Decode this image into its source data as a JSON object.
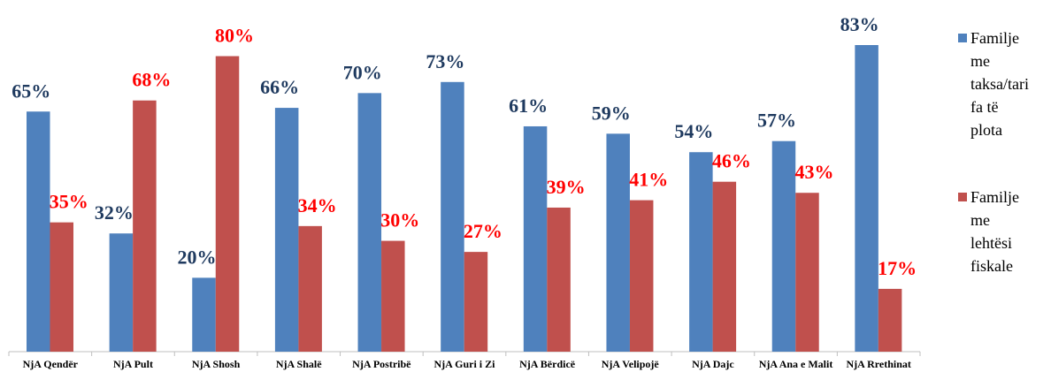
{
  "chart_data": {
    "type": "bar",
    "categories": [
      "NjA Qendër",
      "NjA Pult",
      "NjA Shosh",
      "NjA Shalë",
      "NjA Postribë",
      "NjA Guri i Zi",
      "NjA Bërdicë",
      "NjA Velipojë",
      "NjA Dajc",
      "NjA Ana e Malit",
      "NjA Rrethinat"
    ],
    "series": [
      {
        "name": "Familje me taksa/tarifa të plota",
        "color": "#4f81bd",
        "label_color": "#1f3a5f",
        "values": [
          65,
          32,
          20,
          66,
          70,
          73,
          61,
          59,
          54,
          57,
          83
        ],
        "value_labels": [
          "65%",
          "32%",
          "20%",
          "66%",
          "70%",
          "73%",
          "61%",
          "59%",
          "54%",
          "57%",
          "83%"
        ]
      },
      {
        "name": "Familje me lehtësi fiskale",
        "color": "#c0504d",
        "label_color": "#ff0000",
        "values": [
          35,
          68,
          80,
          34,
          30,
          27,
          39,
          41,
          46,
          43,
          17
        ],
        "value_labels": [
          "35%",
          "68%",
          "80%",
          "34%",
          "30%",
          "27%",
          "39%",
          "41%",
          "46%",
          "43%",
          "17%"
        ]
      }
    ],
    "legend": "right"
  }
}
